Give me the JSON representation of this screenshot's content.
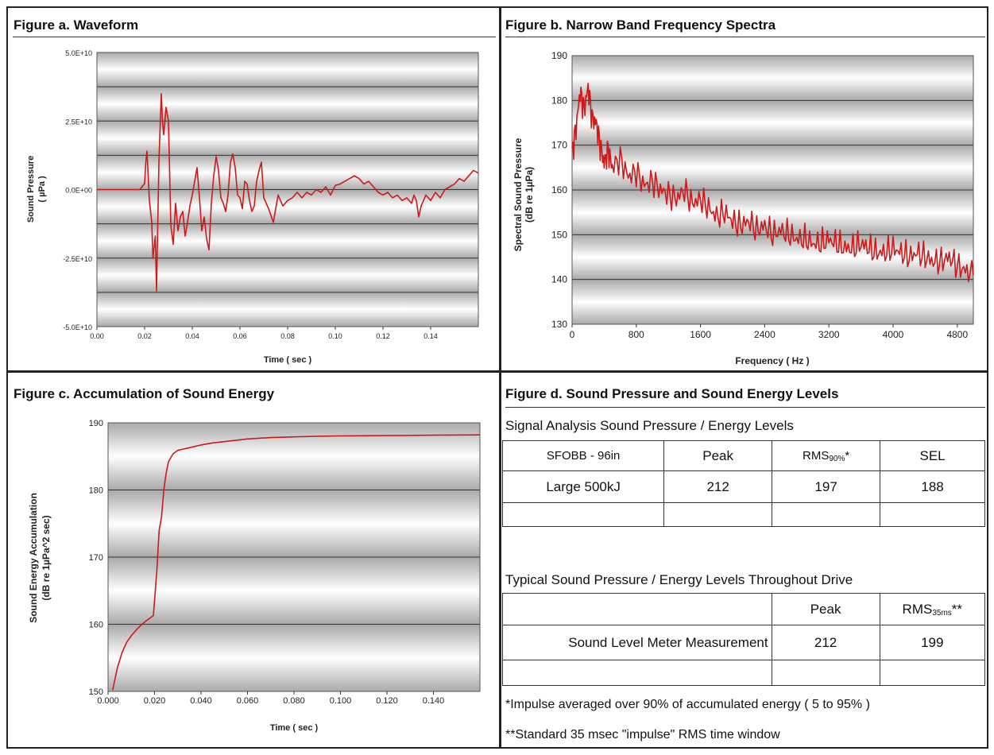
{
  "figure_a": {
    "title": "Figure a. Waveform",
    "xlabel": "Time ( sec )",
    "ylabel": "Sound Pressure",
    "ylabel2": "( µPa )",
    "x_ticks": [
      "0.00",
      "0.02",
      "0.04",
      "0.06",
      "0.08",
      "0.10",
      "0.12",
      "0.14"
    ],
    "y_ticks": [
      "5.0E+10",
      "2.5E+10",
      "0.0E+00",
      "-2.5E+10",
      "-5.0E+10"
    ]
  },
  "figure_b": {
    "title": "Figure b. Narrow Band Frequency Spectra",
    "xlabel": "Frequency ( Hz )",
    "ylabel": "Spectral Sound Pressure",
    "ylabel2": "(dB re 1µPa)",
    "x_ticks": [
      "0",
      "800",
      "1600",
      "2400",
      "3200",
      "4000",
      "4800"
    ],
    "y_ticks": [
      "190",
      "180",
      "170",
      "160",
      "150",
      "140",
      "130"
    ]
  },
  "figure_c": {
    "title": "Figure c. Accumulation of Sound Energy",
    "xlabel": "Time ( sec )",
    "ylabel": "Sound Energy Accumulation",
    "ylabel2": "(dB re 1µPa^2 sec)",
    "x_ticks": [
      "0.000",
      "0.020",
      "0.040",
      "0.060",
      "0.080",
      "0.100",
      "0.120",
      "0.140"
    ],
    "y_ticks": [
      "190",
      "180",
      "170",
      "160",
      "150"
    ]
  },
  "figure_d": {
    "title": "Figure d. Sound Pressure and Sound Energy Levels",
    "table1_title": "Signal Analysis Sound Pressure / Energy Levels",
    "t1_h0": "SFOBB - 96in",
    "t1_h1": "Peak",
    "t1_h2_main": "RMS",
    "t1_h2_sub": "90%",
    "t1_h2_star": "*",
    "t1_h3": "SEL",
    "t1_r0": "Large 500kJ",
    "t1_r1": "212",
    "t1_r2": "197",
    "t1_r3": "188",
    "table2_title": "Typical Sound Pressure / Energy Levels Throughout Drive",
    "t2_h1": "Peak",
    "t2_h2_main": "RMS",
    "t2_h2_sub": "35ms",
    "t2_h2_star": "**",
    "t2_r0": "Sound Level Meter Measurement",
    "t2_r1": "212",
    "t2_r2": "199",
    "note1": "*Impulse averaged over 90% of accumulated energy ( 5 to 95% )",
    "note2": "**Standard 35 msec \"impulse\" RMS time window"
  },
  "colors": {
    "trace": "#cc1a1a",
    "panel_dark": "#a9a9a9",
    "panel_light": "#ffffff"
  },
  "chart_data": [
    {
      "type": "line",
      "title": "Figure a. Waveform",
      "xlabel": "Time ( sec )",
      "ylabel": "Sound Pressure ( µPa )",
      "xlim": [
        0,
        0.16
      ],
      "ylim": [
        -50000000000.0,
        50000000000.0
      ],
      "x": [
        0.0,
        0.018,
        0.02,
        0.0205,
        0.021,
        0.022,
        0.023,
        0.0235,
        0.0245,
        0.025,
        0.026,
        0.027,
        0.0275,
        0.028,
        0.029,
        0.03,
        0.031,
        0.032,
        0.033,
        0.034,
        0.035,
        0.036,
        0.037,
        0.038,
        0.039,
        0.04,
        0.041,
        0.042,
        0.043,
        0.044,
        0.045,
        0.046,
        0.047,
        0.048,
        0.049,
        0.05,
        0.051,
        0.052,
        0.053,
        0.054,
        0.055,
        0.056,
        0.057,
        0.058,
        0.059,
        0.06,
        0.061,
        0.062,
        0.063,
        0.064,
        0.065,
        0.066,
        0.067,
        0.068,
        0.069,
        0.07,
        0.072,
        0.074,
        0.076,
        0.078,
        0.08,
        0.082,
        0.084,
        0.086,
        0.088,
        0.09,
        0.092,
        0.094,
        0.096,
        0.098,
        0.1,
        0.102,
        0.104,
        0.106,
        0.108,
        0.11,
        0.112,
        0.114,
        0.116,
        0.118,
        0.12,
        0.122,
        0.124,
        0.126,
        0.128,
        0.13,
        0.132,
        0.133,
        0.134,
        0.135,
        0.136,
        0.138,
        0.14,
        0.142,
        0.144,
        0.146,
        0.148,
        0.15,
        0.152,
        0.154,
        0.156,
        0.158,
        0.16
      ],
      "values": [
        0,
        0,
        2200000000.0,
        10000000000.0,
        14000000000.0,
        -4000000000.0,
        -12000000000.0,
        -25000000000.0,
        -17000000000.0,
        -37000000000.0,
        10000000000.0,
        35000000000.0,
        25000000000.0,
        20000000000.0,
        30000000000.0,
        25000000000.0,
        -13000000000.0,
        -20000000000.0,
        -5000000000.0,
        -15000000000.0,
        -10000000000.0,
        -8000000000.0,
        -17000000000.0,
        -12000000000.0,
        -6000000000.0,
        -2000000000.0,
        3000000000.0,
        8000000000.0,
        -3000000000.0,
        -15000000000.0,
        -10000000000.0,
        -18000000000.0,
        -22000000000.0,
        -5000000000.0,
        5000000000.0,
        12000000000.0,
        7000000000.0,
        -3000000000.0,
        -5000000000.0,
        -8000000000.0,
        -2000000000.0,
        10000000000.0,
        13000000000.0,
        8000000000.0,
        -2000000000.0,
        -3000000000.0,
        -7000000000.0,
        3000000000.0,
        2000000000.0,
        -4000000000.0,
        -8000000000.0,
        -6000000000.0,
        3000000000.0,
        7000000000.0,
        10000000000.0,
        -3000000000.0,
        -7000000000.0,
        -12000000000.0,
        -2000000000.0,
        -6000000000.0,
        -4000000000.0,
        -3000000000.0,
        -1000000000.0,
        -3000000000.0,
        -1000000000.0,
        -2000000000.0,
        0,
        -1000000000.0,
        1000000000.0,
        -2000000000.0,
        1500000000.0,
        2000000000.0,
        3000000000.0,
        4000000000.0,
        5000000000.0,
        4000000000.0,
        2000000000.0,
        3000000000.0,
        1000000000.0,
        -1000000000.0,
        -2000000000.0,
        -1000000000.0,
        -3000000000.0,
        -2000000000.0,
        -4000000000.0,
        -3000000000.0,
        -5000000000.0,
        -2000000000.0,
        -4000000000.0,
        -10000000000.0,
        -6000000000.0,
        -2000000000.0,
        -4000000000.0,
        -1000000000.0,
        -3000000000.0,
        0,
        1000000000.0,
        2000000000.0,
        4000000000.0,
        3000000000.0,
        5000000000.0,
        7000000000.0,
        6000000000.0
      ]
    },
    {
      "type": "line",
      "title": "Figure b. Narrow Band Frequency Spectra",
      "xlabel": "Frequency ( Hz )",
      "ylabel": "Spectral Sound Pressure (dB re 1µPa)",
      "xlim": [
        0,
        5000
      ],
      "ylim": [
        130,
        190
      ],
      "x": [
        0,
        50,
        100,
        150,
        200,
        250,
        300,
        350,
        400,
        450,
        500,
        600,
        700,
        800,
        900,
        1000,
        1100,
        1200,
        1300,
        1400,
        1500,
        1600,
        1700,
        1800,
        1900,
        2000,
        2100,
        2200,
        2300,
        2400,
        2500,
        2600,
        2700,
        2800,
        2900,
        3000,
        3100,
        3200,
        3300,
        3400,
        3500,
        3600,
        3700,
        3800,
        3900,
        4000,
        4100,
        4200,
        4300,
        4400,
        4500,
        4600,
        4700,
        4800,
        4900,
        5000
      ],
      "values": [
        168,
        174,
        182,
        178,
        183,
        176,
        175,
        170,
        166,
        169,
        165,
        167,
        163,
        164,
        161,
        162,
        160,
        159,
        158,
        160,
        157,
        158,
        156,
        154,
        155,
        153,
        152,
        153,
        151,
        152,
        150,
        151,
        150,
        149,
        149,
        148,
        148,
        149,
        148,
        147,
        147,
        148,
        147,
        146,
        146,
        147,
        146,
        145,
        146,
        145,
        144,
        144,
        145,
        143,
        142,
        141
      ]
    },
    {
      "type": "line",
      "title": "Figure c. Accumulation of Sound Energy",
      "xlabel": "Time ( sec )",
      "ylabel": "Sound Energy Accumulation (dB re 1µPa^2 sec)",
      "xlim": [
        0,
        0.16
      ],
      "ylim": [
        150,
        190
      ],
      "x": [
        0.002,
        0.004,
        0.006,
        0.008,
        0.01,
        0.012,
        0.014,
        0.016,
        0.018,
        0.0195,
        0.02,
        0.021,
        0.022,
        0.023,
        0.024,
        0.025,
        0.026,
        0.028,
        0.03,
        0.035,
        0.04,
        0.045,
        0.05,
        0.06,
        0.07,
        0.08,
        0.09,
        0.1,
        0.12,
        0.14,
        0.16
      ],
      "values": [
        150.2,
        153.5,
        155.8,
        157.3,
        158.3,
        159.1,
        159.8,
        160.4,
        160.9,
        161.3,
        163.5,
        168,
        174,
        176,
        180,
        182.5,
        184.2,
        185.4,
        185.9,
        186.3,
        186.7,
        187.0,
        187.2,
        187.6,
        187.8,
        187.9,
        188.0,
        188.05,
        188.1,
        188.15,
        188.2
      ]
    }
  ]
}
